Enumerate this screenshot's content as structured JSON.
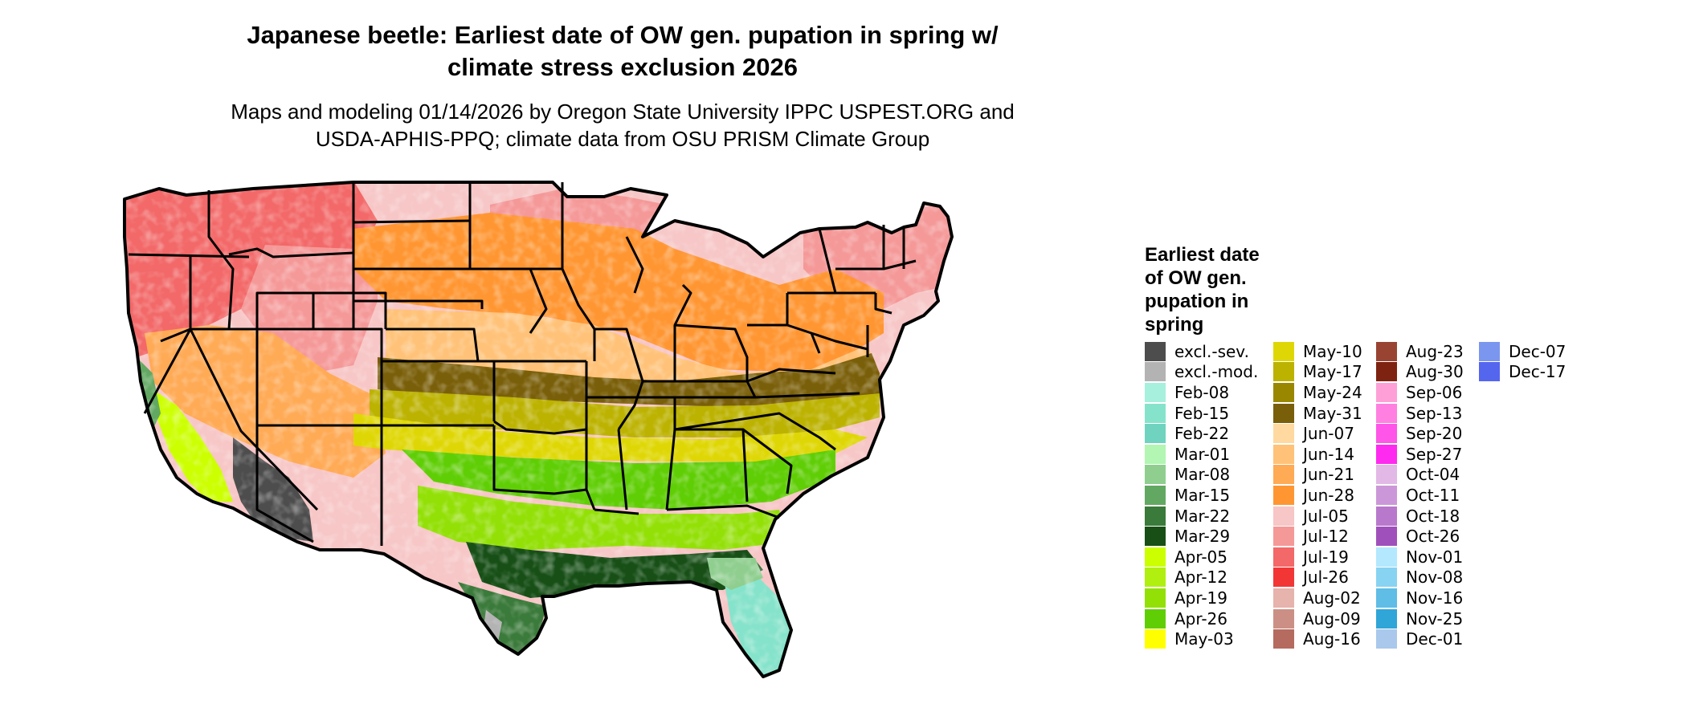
{
  "title": {
    "line1": "Japanese beetle: Earliest date of OW gen. pupation in spring w/",
    "line2": "climate stress exclusion 2026"
  },
  "subtitle": {
    "line1": "Maps and modeling 01/14/2026 by Oregon State University IPPC USPEST.ORG and",
    "line2": "USDA-APHIS-PPQ; climate data from OSU PRISM Climate Group"
  },
  "legend": {
    "title_lines": [
      "Earliest date",
      "of OW gen.",
      "pupation in",
      "spring"
    ],
    "columns": [
      [
        {
          "label": "excl.-sev.",
          "color": "#4d4d4d"
        },
        {
          "label": "excl.-mod.",
          "color": "#b3b3b3"
        },
        {
          "label": "Feb-08",
          "color": "#a6f0dd"
        },
        {
          "label": "Feb-15",
          "color": "#86e3cb"
        },
        {
          "label": "Feb-22",
          "color": "#6fd3bf"
        },
        {
          "label": "Mar-01",
          "color": "#b3f5b3"
        },
        {
          "label": "Mar-08",
          "color": "#8fce8f"
        },
        {
          "label": "Mar-15",
          "color": "#62a862"
        },
        {
          "label": "Mar-22",
          "color": "#3a7a3a"
        },
        {
          "label": "Mar-29",
          "color": "#174f17"
        },
        {
          "label": "Apr-05",
          "color": "#ccff00"
        },
        {
          "label": "Apr-12",
          "color": "#b1ef10"
        },
        {
          "label": "Apr-19",
          "color": "#93e007"
        },
        {
          "label": "Apr-26",
          "color": "#5fce05"
        },
        {
          "label": "May-03",
          "color": "#ffff00"
        }
      ],
      [
        {
          "label": "May-10",
          "color": "#dfd705"
        },
        {
          "label": "May-17",
          "color": "#bcb200"
        },
        {
          "label": "May-24",
          "color": "#9a8700"
        },
        {
          "label": "May-31",
          "color": "#7a5f0a"
        },
        {
          "label": "Jun-07",
          "color": "#ffd9a0"
        },
        {
          "label": "Jun-14",
          "color": "#ffc278"
        },
        {
          "label": "Jun-21",
          "color": "#ffaa55"
        },
        {
          "label": "Jun-28",
          "color": "#ff9632"
        },
        {
          "label": "Jul-05",
          "color": "#f7c6c6"
        },
        {
          "label": "Jul-12",
          "color": "#f59898"
        },
        {
          "label": "Jul-19",
          "color": "#f36868"
        },
        {
          "label": "Jul-26",
          "color": "#f23636"
        },
        {
          "label": "Aug-02",
          "color": "#e6b3ad"
        },
        {
          "label": "Aug-09",
          "color": "#cc8f85"
        },
        {
          "label": "Aug-16",
          "color": "#b56b5f"
        }
      ],
      [
        {
          "label": "Aug-23",
          "color": "#994433"
        },
        {
          "label": "Aug-30",
          "color": "#7e2211"
        },
        {
          "label": "Sep-06",
          "color": "#ff9fd8"
        },
        {
          "label": "Sep-13",
          "color": "#ff80e0"
        },
        {
          "label": "Sep-20",
          "color": "#ff55e8"
        },
        {
          "label": "Sep-27",
          "color": "#ff2aef"
        },
        {
          "label": "Oct-04",
          "color": "#e2b8e6"
        },
        {
          "label": "Oct-11",
          "color": "#cc97d8"
        },
        {
          "label": "Oct-18",
          "color": "#b879cc"
        },
        {
          "label": "Oct-26",
          "color": "#a050bb"
        },
        {
          "label": "Nov-01",
          "color": "#b3e8ff"
        },
        {
          "label": "Nov-08",
          "color": "#88d3f2"
        },
        {
          "label": "Nov-16",
          "color": "#5fbde6"
        },
        {
          "label": "Nov-25",
          "color": "#2fa5d8"
        },
        {
          "label": "Dec-01",
          "color": "#a9c8ec"
        }
      ],
      [
        {
          "label": "Dec-07",
          "color": "#7b96ee"
        },
        {
          "label": "Dec-17",
          "color": "#5566ee"
        }
      ]
    ]
  }
}
